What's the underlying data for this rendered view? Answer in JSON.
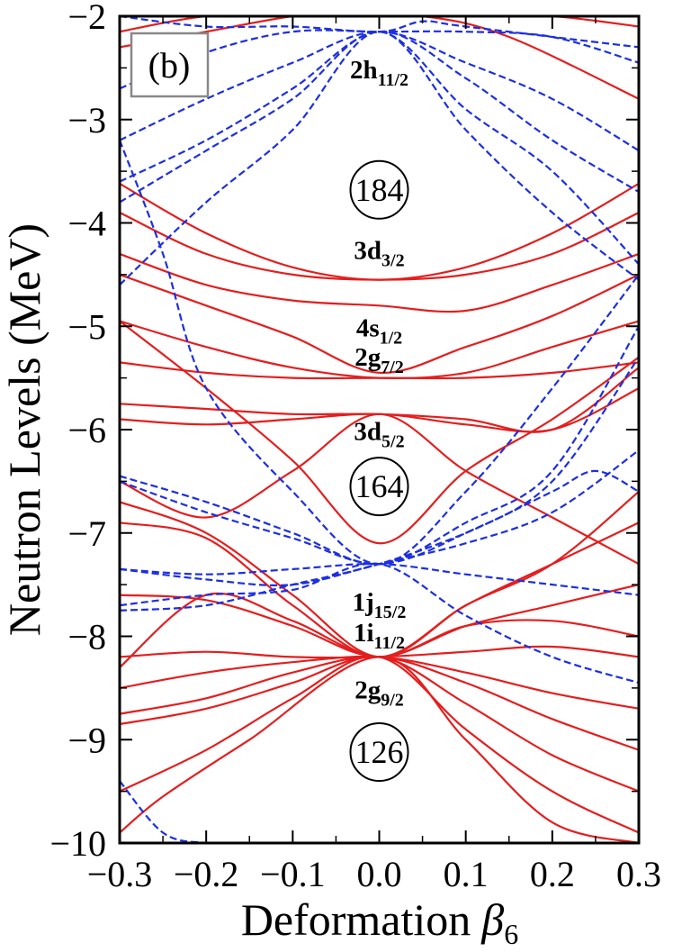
{
  "chart_data": {
    "type": "line",
    "panel_label": "(b)",
    "xlabel": "Deformation",
    "xlabel_symbol": "β",
    "xlabel_subscript": "6",
    "ylabel": "Neutron Levels (MeV)",
    "xlim": [
      -0.3,
      0.3
    ],
    "ylim": [
      -10,
      -2
    ],
    "x_ticks": [
      {
        "value": -0.3,
        "label": "−0.3"
      },
      {
        "value": -0.2,
        "label": "−0.2"
      },
      {
        "value": -0.1,
        "label": "−0.1"
      },
      {
        "value": 0.0,
        "label": "0.0"
      },
      {
        "value": 0.1,
        "label": "0.1"
      },
      {
        "value": 0.2,
        "label": "0.2"
      },
      {
        "value": 0.3,
        "label": "0.3"
      }
    ],
    "y_ticks": [
      {
        "value": -2,
        "label": "−2"
      },
      {
        "value": -3,
        "label": "−3"
      },
      {
        "value": -4,
        "label": "−4"
      },
      {
        "value": -5,
        "label": "−5"
      },
      {
        "value": -6,
        "label": "−6"
      },
      {
        "value": -7,
        "label": "−7"
      },
      {
        "value": -8,
        "label": "−8"
      },
      {
        "value": -9,
        "label": "−9"
      },
      {
        "value": -10,
        "label": "−10"
      }
    ],
    "colors": {
      "positive_parity": "#e41e1e",
      "negative_parity": "#1d2fe0"
    },
    "level_labels": [
      {
        "main": "2h",
        "sub": "11/2",
        "x": -0.0,
        "y": -2.6
      },
      {
        "main": "3d",
        "sub": "3/2",
        "x": -0.0,
        "y": -4.35
      },
      {
        "main": "4s",
        "sub": "1/2",
        "x": -0.0,
        "y": -5.1
      },
      {
        "main": "2g",
        "sub": "7/2",
        "x": -0.0,
        "y": -5.38
      },
      {
        "main": "3d",
        "sub": "5/2",
        "x": -0.0,
        "y": -6.1
      },
      {
        "main": "1j",
        "sub": "15/2",
        "x": -0.0,
        "y": -7.75
      },
      {
        "main": "1i",
        "sub": "11/2",
        "x": -0.0,
        "y": -8.05
      },
      {
        "main": "2g",
        "sub": "9/2",
        "x": -0.0,
        "y": -8.6
      }
    ],
    "magic_numbers": [
      {
        "label": "184",
        "x": 0.0,
        "y": -3.68
      },
      {
        "label": "164",
        "x": 0.0,
        "y": -6.55
      },
      {
        "label": "126",
        "x": 0.0,
        "y": -9.12
      }
    ],
    "series": [
      {
        "parity": "+",
        "x": [
          -0.3,
          -0.2,
          -0.1,
          0.0,
          0.1,
          0.2,
          0.3
        ],
        "y": [
          -3.62,
          -4.1,
          -4.43,
          -4.55,
          -4.43,
          -4.1,
          -3.62
        ]
      },
      {
        "parity": "+",
        "x": [
          -0.3,
          -0.2,
          -0.1,
          0.0,
          0.1,
          0.2,
          0.3
        ],
        "y": [
          -3.9,
          -4.3,
          -4.5,
          -4.55,
          -4.5,
          -4.3,
          -3.9
        ]
      },
      {
        "parity": "+",
        "x": [
          -0.3,
          -0.2,
          -0.1,
          0.0,
          0.1,
          0.2,
          0.3
        ],
        "y": [
          -4.3,
          -4.6,
          -4.75,
          -4.8,
          -4.85,
          -4.6,
          -4.3
        ]
      },
      {
        "parity": "+",
        "x": [
          -0.3,
          -0.2,
          -0.1,
          0.0,
          0.1,
          0.2,
          0.3
        ],
        "y": [
          -4.5,
          -4.8,
          -5.1,
          -5.45,
          -5.2,
          -4.9,
          -4.5
        ]
      },
      {
        "parity": "+",
        "x": [
          -0.3,
          -0.2,
          -0.1,
          0.0,
          0.1,
          0.2,
          0.3
        ],
        "y": [
          -4.95,
          -5.2,
          -5.4,
          -5.5,
          -5.45,
          -5.2,
          -4.95
        ]
      },
      {
        "parity": "+",
        "x": [
          -0.3,
          -0.2,
          -0.1,
          0.0,
          0.1,
          0.2,
          0.3
        ],
        "y": [
          -5.35,
          -5.45,
          -5.5,
          -5.5,
          -5.5,
          -5.45,
          -5.35
        ]
      },
      {
        "parity": "+",
        "x": [
          -0.3,
          -0.2,
          -0.1,
          0.0,
          0.1,
          0.2,
          0.3
        ],
        "y": [
          -5.75,
          -5.8,
          -5.85,
          -5.85,
          -5.9,
          -6.0,
          -5.4
        ]
      },
      {
        "parity": "+",
        "x": [
          -0.3,
          -0.2,
          -0.1,
          0.0,
          0.1,
          0.2,
          0.3
        ],
        "y": [
          -5.9,
          -5.95,
          -5.9,
          -5.85,
          -5.95,
          -6.0,
          -5.6
        ]
      },
      {
        "parity": "+",
        "x": [
          -0.3,
          -0.2,
          -0.1,
          0.0,
          0.1,
          0.2,
          0.3
        ],
        "y": [
          -4.95,
          -5.6,
          -6.3,
          -7.1,
          -6.4,
          -5.9,
          -5.3
        ]
      },
      {
        "parity": "+",
        "x": [
          -0.3,
          -0.2,
          -0.1,
          0.0,
          0.1,
          0.2,
          0.3
        ],
        "y": [
          -6.5,
          -6.85,
          -6.4,
          -5.85,
          -6.4,
          -6.85,
          -7.3
        ]
      },
      {
        "parity": "+",
        "x": [
          -0.3,
          -0.2,
          -0.1,
          0.0,
          0.1,
          0.2,
          0.3
        ],
        "y": [
          -6.7,
          -7.0,
          -7.6,
          -8.2,
          -7.7,
          -7.3,
          -6.9
        ]
      },
      {
        "parity": "+",
        "x": [
          -0.3,
          -0.2,
          -0.1,
          0.0,
          0.1,
          0.2,
          0.3
        ],
        "y": [
          -6.9,
          -7.05,
          -7.7,
          -8.2,
          -7.7,
          -7.3,
          -6.6
        ]
      },
      {
        "parity": "+",
        "x": [
          -0.3,
          -0.2,
          -0.1,
          0.0,
          0.1,
          0.2,
          0.3
        ],
        "y": [
          -7.6,
          -7.65,
          -7.9,
          -8.2,
          -7.9,
          -7.7,
          -7.5
        ]
      },
      {
        "parity": "+",
        "x": [
          -0.3,
          -0.2,
          -0.1,
          0.0,
          0.1,
          0.2,
          0.3
        ],
        "y": [
          -8.3,
          -7.6,
          -7.85,
          -8.2,
          -7.9,
          -7.85,
          -8.0
        ]
      },
      {
        "parity": "+",
        "x": [
          -0.3,
          -0.2,
          -0.1,
          0.0,
          0.1,
          0.2,
          0.3
        ],
        "y": [
          -8.2,
          -8.15,
          -8.2,
          -8.2,
          -8.15,
          -8.1,
          -8.2
        ]
      },
      {
        "parity": "+",
        "x": [
          -0.3,
          -0.2,
          -0.1,
          0.0,
          0.1,
          0.2,
          0.3
        ],
        "y": [
          -8.5,
          -8.35,
          -8.25,
          -8.2,
          -8.35,
          -8.55,
          -8.7
        ]
      },
      {
        "parity": "+",
        "x": [
          -0.3,
          -0.2,
          -0.1,
          0.0,
          0.1,
          0.2,
          0.3
        ],
        "y": [
          -8.75,
          -8.6,
          -8.35,
          -8.2,
          -8.45,
          -8.8,
          -9.1
        ]
      },
      {
        "parity": "+",
        "x": [
          -0.3,
          -0.2,
          -0.1,
          0.0,
          0.1,
          0.2,
          0.3
        ],
        "y": [
          -8.85,
          -8.7,
          -8.45,
          -8.2,
          -8.65,
          -9.15,
          -9.5
        ]
      },
      {
        "parity": "+",
        "x": [
          -0.3,
          -0.2,
          -0.1,
          0.0,
          0.1,
          0.2,
          0.3
        ],
        "y": [
          -9.5,
          -9.1,
          -8.6,
          -8.2,
          -8.9,
          -9.5,
          -9.9
        ]
      },
      {
        "parity": "+",
        "x": [
          -0.3,
          -0.25,
          -0.15,
          0.0,
          0.1,
          0.2,
          0.3
        ],
        "y": [
          -9.9,
          -9.55,
          -9.0,
          -8.2,
          -9.0,
          -9.8,
          -10.0
        ]
      },
      {
        "parity": "+",
        "x": [
          -0.3,
          -0.2,
          -0.1,
          0.0,
          0.1,
          0.2,
          0.3
        ],
        "y": [
          -2.15,
          -2.0,
          -2.0,
          -2.0,
          -2.0,
          -2.0,
          -2.1
        ]
      },
      {
        "parity": "+",
        "x": [
          -0.3,
          -0.2,
          -0.1,
          -0.05,
          0.05,
          0.15,
          0.3
        ],
        "y": [
          -2.3,
          -2.15,
          -2.0,
          -2.0,
          -2.0,
          -2.2,
          -2.8
        ]
      },
      {
        "parity": "-",
        "x": [
          -0.3,
          -0.2,
          -0.1,
          0.0,
          0.1,
          0.2,
          0.3
        ],
        "y": [
          -2.7,
          -2.35,
          -2.15,
          -2.15,
          -2.15,
          -2.2,
          -2.45
        ]
      },
      {
        "parity": "-",
        "x": [
          -0.3,
          -0.2,
          -0.1,
          0.0,
          0.1,
          0.2,
          0.3
        ],
        "y": [
          -3.2,
          -2.8,
          -2.45,
          -2.15,
          -2.45,
          -2.8,
          -3.3
        ]
      },
      {
        "parity": "-",
        "x": [
          -0.3,
          -0.2,
          -0.1,
          0.0,
          0.1,
          0.2,
          0.3
        ],
        "y": [
          -3.6,
          -3.2,
          -2.7,
          -2.15,
          -2.6,
          -3.2,
          -3.7
        ]
      },
      {
        "parity": "-",
        "x": [
          -0.3,
          -0.2,
          -0.1,
          0.0,
          0.1,
          0.2,
          0.3
        ],
        "y": [
          -3.8,
          -3.3,
          -2.8,
          -2.15,
          -2.9,
          -3.5,
          -4.4
        ]
      },
      {
        "parity": "-",
        "x": [
          -0.3,
          -0.2,
          -0.1,
          0.0,
          0.05,
          0.1,
          0.3
        ],
        "y": [
          -2.0,
          -2.1,
          -2.1,
          -2.15,
          -2.05,
          -2.1,
          -2.3
        ]
      },
      {
        "parity": "-",
        "x": [
          -0.3,
          -0.2,
          -0.1,
          0.0,
          0.1,
          0.2,
          0.3
        ],
        "y": [
          -4.6,
          -3.8,
          -3.1,
          -2.15,
          -3.1,
          -3.9,
          -4.55
        ]
      },
      {
        "parity": "-",
        "x": [
          -0.3,
          -0.25,
          -0.2,
          -0.1,
          0.0,
          0.1,
          0.2,
          0.3
        ],
        "y": [
          -3.2,
          -4.3,
          -5.6,
          -6.6,
          -7.3,
          -6.6,
          -5.6,
          -4.5
        ]
      },
      {
        "parity": "-",
        "x": [
          -0.3,
          -0.2,
          -0.1,
          0.0,
          0.1,
          0.2,
          0.3
        ],
        "y": [
          -6.45,
          -6.7,
          -7.0,
          -7.3,
          -6.9,
          -6.4,
          -5.0
        ]
      },
      {
        "parity": "-",
        "x": [
          -0.3,
          -0.2,
          -0.1,
          0.0,
          0.1,
          0.2,
          0.3
        ],
        "y": [
          -6.5,
          -6.8,
          -7.05,
          -7.3,
          -7.0,
          -6.5,
          -5.3
        ]
      },
      {
        "parity": "-",
        "x": [
          -0.3,
          -0.2,
          -0.1,
          0.0,
          0.1,
          0.2,
          0.3
        ],
        "y": [
          -7.35,
          -7.45,
          -7.5,
          -7.3,
          -7.1,
          -6.8,
          -6.2
        ]
      },
      {
        "parity": "-",
        "x": [
          -0.3,
          -0.2,
          -0.1,
          0.0,
          0.1,
          0.2,
          0.3
        ],
        "y": [
          -7.35,
          -7.4,
          -7.35,
          -7.3,
          -7.4,
          -7.5,
          -7.6
        ]
      },
      {
        "parity": "-",
        "x": [
          -0.3,
          -0.2,
          -0.1,
          0.0,
          0.1,
          0.2,
          0.25,
          0.3
        ],
        "y": [
          -7.75,
          -7.7,
          -7.5,
          -7.3,
          -7.0,
          -6.6,
          -6.4,
          -6.6
        ]
      },
      {
        "parity": "-",
        "x": [
          -0.3,
          -0.2,
          -0.1,
          0.0,
          0.1,
          0.2,
          0.3
        ],
        "y": [
          -7.7,
          -7.6,
          -7.55,
          -7.3,
          -7.8,
          -8.2,
          -8.45
        ]
      },
      {
        "parity": "-",
        "x": [
          -0.3,
          -0.25,
          -0.2,
          -0.15,
          -0.1
        ],
        "y": [
          -9.4,
          -9.9,
          -10.0,
          -10.0,
          -10.0
        ]
      }
    ]
  }
}
